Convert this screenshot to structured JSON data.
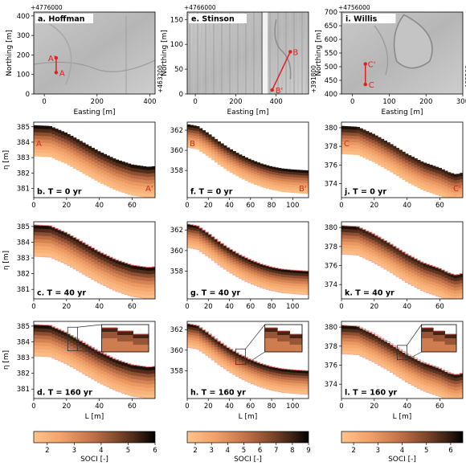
{
  "chart_data": {
    "type": "scientific_figure",
    "colorbar_label": "SOCI [-]",
    "axis_labels": {
      "easting": "Easting [m]",
      "northing": "Northing [m]",
      "eta": "η [m]",
      "length": "L [m]"
    },
    "time_labels": [
      "T = 0 yr",
      "T = 40 yr",
      "T = 160 yr"
    ],
    "sites": [
      {
        "key": "hoffman",
        "map_title": "a. Hoffman",
        "panel_letters": [
          "b.",
          "c.",
          "d."
        ],
        "coord_top": "+4776000",
        "coord_side": "+463200",
        "easting_ticks": [
          0,
          200,
          400
        ],
        "easting_range": [
          -40,
          420
        ],
        "northing_ticks": [
          0,
          100,
          200,
          300,
          400
        ],
        "northing_range": [
          0,
          420
        ],
        "transect": {
          "from_label": "A",
          "to_label": "A'",
          "from": [
            45,
            110
          ],
          "to": [
            45,
            185
          ]
        },
        "profile": {
          "L_max": 74,
          "L_ticks": [
            0,
            20,
            40,
            60
          ],
          "eta_range": [
            380.4,
            385.3
          ],
          "eta_ticks": [
            381,
            382,
            383,
            384,
            385
          ],
          "surface_t0": [
            [
              0,
              385.1
            ],
            [
              10,
              385.05
            ],
            [
              20,
              384.6
            ],
            [
              30,
              384.0
            ],
            [
              40,
              383.4
            ],
            [
              50,
              382.9
            ],
            [
              60,
              382.55
            ],
            [
              70,
              382.4
            ],
            [
              74,
              382.45
            ]
          ],
          "thickness": 2.0,
          "soci_range": [
            1.5,
            6
          ],
          "soci_ticks": [
            2,
            3,
            4,
            5,
            6
          ],
          "inset_range": [
            0.28,
            0.52
          ]
        }
      },
      {
        "key": "stinson",
        "map_title": "e. Stinson",
        "panel_letters": [
          "f.",
          "g.",
          "h."
        ],
        "coord_top": "+4766000",
        "coord_side": "+391800",
        "easting_ticks": [
          0,
          200,
          400
        ],
        "easting_range": [
          -40,
          560
        ],
        "northing_ticks": [
          0,
          50,
          100,
          150
        ],
        "northing_range": [
          0,
          165
        ],
        "transect": {
          "from_label": "B'",
          "to_label": "B",
          "from": [
            380,
            8
          ],
          "to": [
            470,
            85
          ]
        },
        "profile": {
          "L_max": 115,
          "L_ticks": [
            0,
            20,
            40,
            60,
            80,
            100
          ],
          "eta_range": [
            355.3,
            362.8
          ],
          "eta_ticks": [
            358,
            360,
            362
          ],
          "surface_t0": [
            [
              0,
              362.6
            ],
            [
              10,
              362.4
            ],
            [
              20,
              361.7
            ],
            [
              30,
              360.9
            ],
            [
              40,
              360.2
            ],
            [
              50,
              359.6
            ],
            [
              60,
              359.1
            ],
            [
              70,
              358.7
            ],
            [
              80,
              358.4
            ],
            [
              90,
              358.2
            ],
            [
              100,
              358.1
            ],
            [
              115,
              358.0
            ]
          ],
          "thickness": 2.3,
          "soci_range": [
            1.5,
            9
          ],
          "soci_ticks": [
            2,
            3,
            4,
            5,
            6,
            7,
            8,
            9
          ],
          "inset_range": [
            0.4,
            0.6
          ]
        }
      },
      {
        "key": "willis",
        "map_title": "i. Willis",
        "panel_letters": [
          "j.",
          "k.",
          "l."
        ],
        "coord_top": "+4756000",
        "coord_side": "+463500",
        "easting_ticks": [
          0,
          100,
          200,
          300
        ],
        "easting_range": [
          -30,
          300
        ],
        "northing_ticks": [
          400,
          450,
          500,
          550,
          600,
          650,
          700
        ],
        "northing_range": [
          400,
          700
        ],
        "transect": {
          "from_label": "C",
          "to_label": "C'",
          "from": [
            35,
            435
          ],
          "to": [
            35,
            510
          ]
        },
        "profile": {
          "L_max": 74,
          "L_ticks": [
            0,
            20,
            40,
            60
          ],
          "eta_range": [
            372.5,
            380.6
          ],
          "eta_ticks": [
            374,
            376,
            378,
            380
          ],
          "surface_t0": [
            [
              0,
              380.2
            ],
            [
              10,
              380.1
            ],
            [
              20,
              379.3
            ],
            [
              30,
              378.3
            ],
            [
              40,
              377.2
            ],
            [
              50,
              376.3
            ],
            [
              60,
              375.7
            ],
            [
              66,
              375.2
            ],
            [
              70,
              375.0
            ],
            [
              74,
              375.2
            ]
          ],
          "thickness": 3.0,
          "soci_range": [
            1.5,
            6.5
          ],
          "soci_ticks": [
            2,
            3,
            4,
            5,
            6
          ],
          "inset_range": [
            0.46,
            0.62
          ]
        }
      }
    ]
  }
}
